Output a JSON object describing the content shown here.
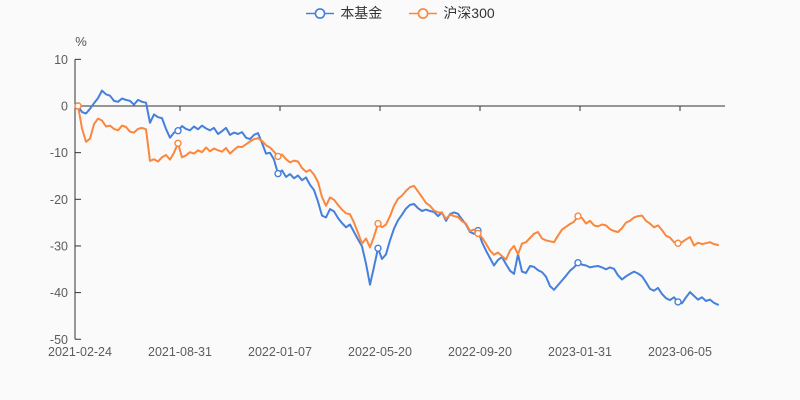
{
  "chart_data": {
    "type": "line",
    "title": "",
    "legend_position": "top",
    "grid": false,
    "y_axis": {
      "name": "%",
      "ticks": [
        10,
        0,
        -10,
        -20,
        -30,
        -40,
        -50
      ],
      "range": [
        -50,
        10
      ]
    },
    "x_axis": {
      "type": "category",
      "tick_labels": [
        "2021-02-24",
        "2021-08-31",
        "2022-01-07",
        "2022-05-20",
        "2022-09-20",
        "2023-01-31",
        "2023-06-05"
      ]
    },
    "marker_indices": [
      0,
      25,
      50,
      75,
      100,
      125,
      150
    ],
    "series": [
      {
        "name": "本基金",
        "color": "#4580dc",
        "values": [
          0,
          -1.3,
          -1.6,
          -0.6,
          0.6,
          1.7,
          3.3,
          2.5,
          2.2,
          1.1,
          0.9,
          1.6,
          1.3,
          1.1,
          0.3,
          1.3,
          0.9,
          0.7,
          -3.6,
          -1.8,
          -2.4,
          -2.6,
          -4.9,
          -6.8,
          -5.7,
          -5.3,
          -4.3,
          -4.9,
          -5.2,
          -4.4,
          -5.0,
          -4.2,
          -4.8,
          -5.2,
          -4.7,
          -6.0,
          -5.4,
          -4.7,
          -6.2,
          -5.7,
          -6.0,
          -5.6,
          -6.8,
          -7.1,
          -6.2,
          -5.8,
          -7.9,
          -10.2,
          -10.0,
          -11.5,
          -14.5,
          -13.8,
          -15.2,
          -14.6,
          -15.5,
          -14.9,
          -15.9,
          -15.3,
          -16.9,
          -18.0,
          -20.5,
          -23.5,
          -23.9,
          -22.1,
          -22.6,
          -24.0,
          -25.1,
          -26.0,
          -25.4,
          -27.0,
          -28.6,
          -30.1,
          -33.8,
          -38.3,
          -34.5,
          -30.5,
          -32.8,
          -31.8,
          -28.8,
          -26.3,
          -24.5,
          -23.3,
          -22.0,
          -21.2,
          -21.0,
          -21.9,
          -22.5,
          -22.2,
          -22.5,
          -22.7,
          -23.6,
          -22.8,
          -24.6,
          -23.2,
          -22.8,
          -23.1,
          -24.3,
          -25.4,
          -27.0,
          -27.4,
          -26.7,
          -29.2,
          -31.0,
          -32.6,
          -34.2,
          -33.0,
          -32.4,
          -33.9,
          -35.3,
          -36.0,
          -31.8,
          -35.5,
          -35.8,
          -34.3,
          -34.5,
          -35.2,
          -35.6,
          -36.6,
          -38.6,
          -39.4,
          -38.4,
          -37.4,
          -36.4,
          -35.3,
          -34.6,
          -33.6,
          -34.0,
          -34.2,
          -34.6,
          -34.4,
          -34.3,
          -34.6,
          -35.0,
          -34.6,
          -34.9,
          -36.3,
          -37.2,
          -36.5,
          -36.0,
          -35.5,
          -35.9,
          -36.5,
          -37.8,
          -39.2,
          -39.6,
          -39.0,
          -40.3,
          -41.2,
          -41.6,
          -41.0,
          -42.0,
          -42.3,
          -41.0,
          -39.9,
          -40.7,
          -41.5,
          -41.0,
          -41.8,
          -41.5,
          -42.2,
          -42.6
        ]
      },
      {
        "name": "沪深300",
        "color": "#fa873d",
        "values": [
          0,
          -4.8,
          -7.7,
          -7.0,
          -3.9,
          -2.7,
          -3.1,
          -4.4,
          -4.2,
          -4.9,
          -5.2,
          -4.2,
          -4.5,
          -5.5,
          -5.7,
          -4.9,
          -4.7,
          -5.0,
          -11.8,
          -11.4,
          -11.9,
          -11.0,
          -10.5,
          -11.5,
          -10.0,
          -8.0,
          -11.0,
          -10.6,
          -9.9,
          -10.2,
          -9.5,
          -9.9,
          -8.9,
          -9.7,
          -9.1,
          -9.5,
          -9.8,
          -9.0,
          -10.2,
          -9.4,
          -8.7,
          -8.8,
          -8.2,
          -7.6,
          -7.1,
          -6.9,
          -7.5,
          -8.4,
          -8.9,
          -9.8,
          -10.8,
          -10.4,
          -11.4,
          -12.1,
          -11.7,
          -11.9,
          -13.3,
          -14.1,
          -13.7,
          -14.7,
          -16.3,
          -19.5,
          -21.4,
          -19.6,
          -20.1,
          -21.2,
          -22.2,
          -23.0,
          -23.2,
          -25.0,
          -27.2,
          -29.5,
          -28.4,
          -30.3,
          -28.0,
          -25.2,
          -26.0,
          -25.4,
          -23.6,
          -21.4,
          -19.9,
          -19.2,
          -18.2,
          -17.4,
          -17.1,
          -18.3,
          -19.5,
          -20.8,
          -21.4,
          -22.4,
          -22.8,
          -22.9,
          -24.2,
          -23.3,
          -23.6,
          -23.8,
          -24.7,
          -25.2,
          -26.8,
          -26.5,
          -27.3,
          -28.2,
          -29.5,
          -31.0,
          -31.9,
          -31.4,
          -32.2,
          -32.9,
          -31.0,
          -30.0,
          -31.8,
          -29.5,
          -29.2,
          -28.3,
          -27.4,
          -27.0,
          -28.4,
          -28.8,
          -29.0,
          -29.2,
          -27.8,
          -26.5,
          -25.9,
          -25.3,
          -24.8,
          -23.6,
          -24.0,
          -25.2,
          -24.6,
          -25.6,
          -25.8,
          -25.4,
          -25.6,
          -26.4,
          -26.8,
          -27.0,
          -26.2,
          -25.0,
          -24.6,
          -23.9,
          -23.6,
          -23.5,
          -24.6,
          -25.2,
          -26.0,
          -25.6,
          -26.6,
          -27.8,
          -28.2,
          -29.2,
          -29.4,
          -29.2,
          -28.6,
          -28.1,
          -29.9,
          -29.3,
          -29.6,
          -29.4,
          -29.2,
          -29.6,
          -29.8
        ]
      }
    ]
  },
  "colors": {
    "background": "#fafafa",
    "axis_line": "#333333",
    "axis_label": "#5c5c5c",
    "legend_text": "#333333"
  }
}
